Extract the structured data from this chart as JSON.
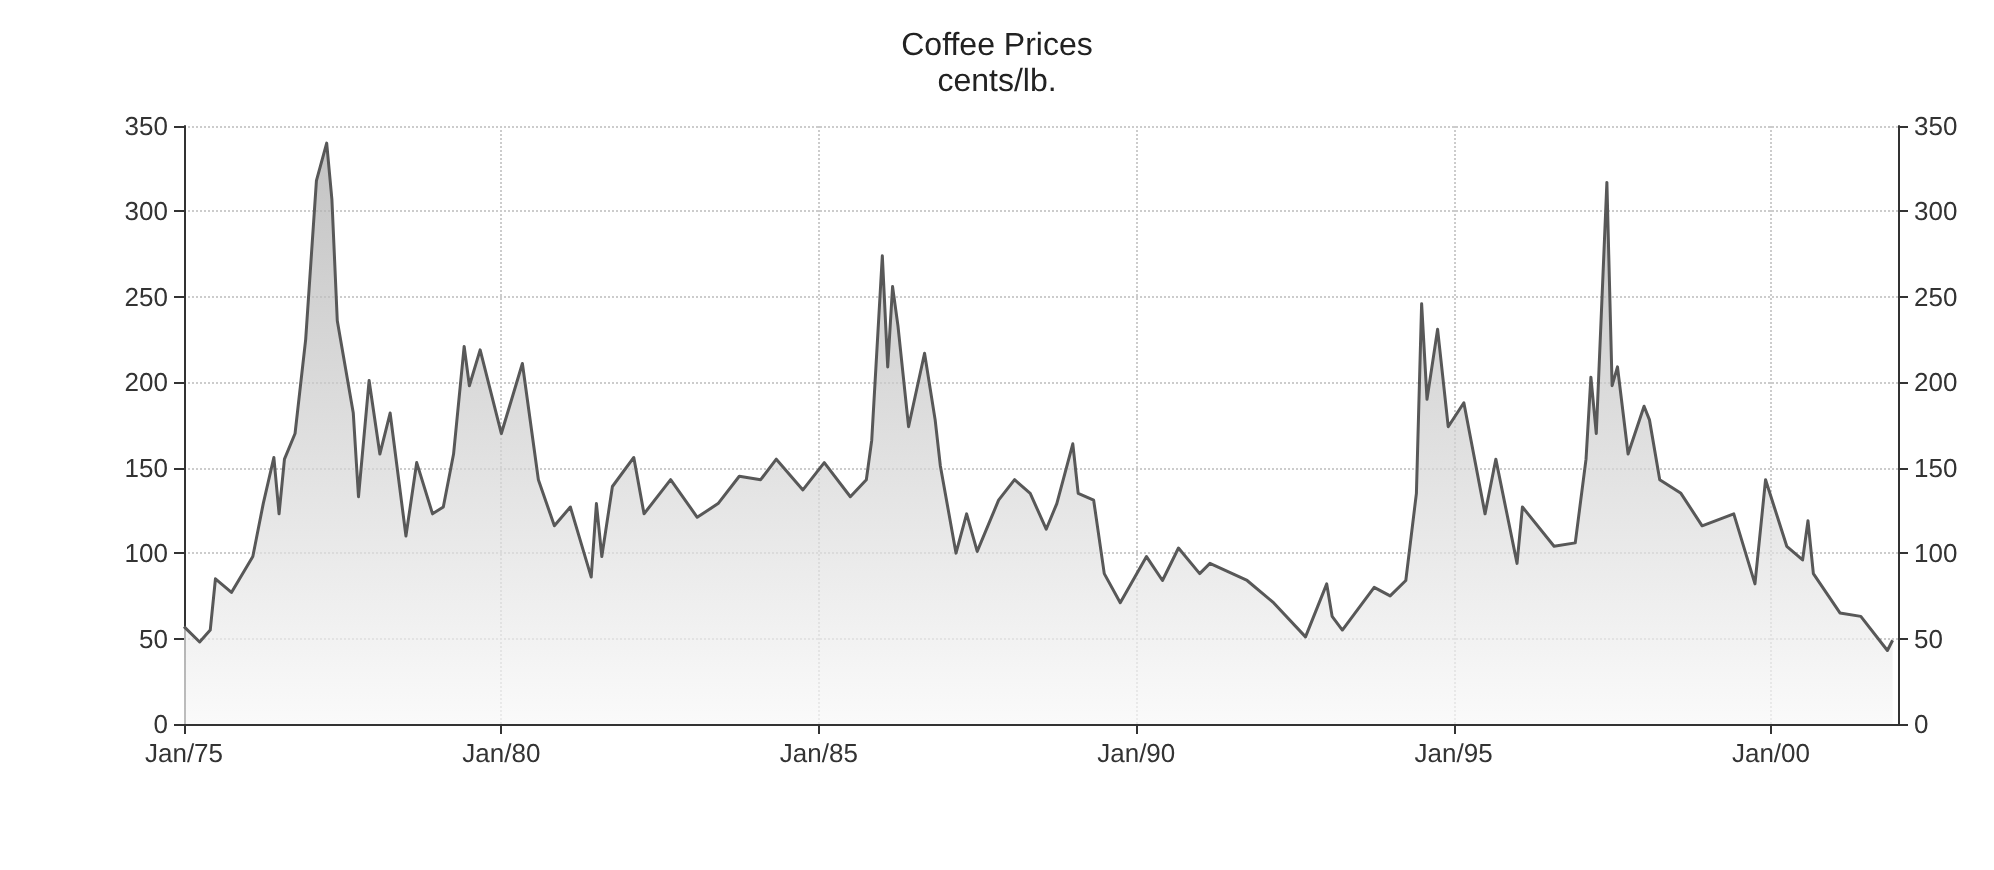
{
  "chart_data": {
    "type": "area",
    "title": "Coffee Prices",
    "subtitle": "cents/lb.",
    "color": "#585858",
    "grid": true,
    "marker": "none",
    "line_style": "solid",
    "x": [
      "1975-01",
      "1975-04",
      "1975-06",
      "1975-07",
      "1975-10",
      "1976-02",
      "1976-04",
      "1976-06",
      "1976-07",
      "1976-08",
      "1976-10",
      "1976-12",
      "1977-02",
      "1977-04",
      "1977-05",
      "1977-06",
      "1977-09",
      "1977-10",
      "1977-12",
      "1978-02",
      "1978-04",
      "1978-07",
      "1978-09",
      "1978-12",
      "1979-02",
      "1979-04",
      "1979-06",
      "1979-07",
      "1979-09",
      "1980-01",
      "1980-05",
      "1980-08",
      "1980-11",
      "1981-02",
      "1981-06",
      "1981-07",
      "1981-08",
      "1981-10",
      "1982-02",
      "1982-04",
      "1982-09",
      "1983-02",
      "1983-06",
      "1983-10",
      "1984-02",
      "1984-05",
      "1984-10",
      "1985-02",
      "1985-07",
      "1985-10",
      "1985-11",
      "1986-01",
      "1986-02",
      "1986-03",
      "1986-04",
      "1986-06",
      "1986-09",
      "1986-11",
      "1986-12",
      "1987-03",
      "1987-05",
      "1987-07",
      "1987-11",
      "1988-02",
      "1988-05",
      "1988-08",
      "1988-10",
      "1989-01",
      "1989-02",
      "1989-05",
      "1989-07",
      "1989-10",
      "1990-03",
      "1990-06",
      "1990-09",
      "1991-01",
      "1991-03",
      "1991-10",
      "1992-03",
      "1992-09",
      "1993-01",
      "1993-02",
      "1993-04",
      "1993-10",
      "1994-01",
      "1994-04",
      "1994-06",
      "1994-07",
      "1994-08",
      "1994-10",
      "1994-12",
      "1995-03",
      "1995-07",
      "1995-09",
      "1996-01",
      "1996-02",
      "1996-08",
      "1996-12",
      "1997-02",
      "1997-03",
      "1997-04",
      "1997-06",
      "1997-07",
      "1997-08",
      "1997-10",
      "1998-01",
      "1998-02",
      "1998-04",
      "1998-08",
      "1998-12",
      "1999-06",
      "1999-10",
      "1999-12",
      "2000-04",
      "2000-07",
      "2000-08",
      "2000-09",
      "2001-02",
      "2001-06",
      "2001-11",
      "2001-12"
    ],
    "values": [
      57,
      48,
      55,
      85,
      77,
      98,
      129,
      156,
      123,
      155,
      170,
      225,
      318,
      340,
      307,
      236,
      182,
      133,
      201,
      158,
      182,
      110,
      153,
      123,
      127,
      158,
      221,
      198,
      219,
      170,
      211,
      143,
      116,
      127,
      86,
      129,
      98,
      139,
      156,
      123,
      143,
      121,
      129,
      145,
      143,
      155,
      137,
      153,
      133,
      143,
      166,
      274,
      209,
      256,
      233,
      174,
      217,
      178,
      151,
      100,
      123,
      101,
      131,
      143,
      135,
      114,
      129,
      164,
      135,
      131,
      88,
      71,
      98,
      84,
      103,
      88,
      94,
      84,
      71,
      51,
      82,
      63,
      55,
      80,
      75,
      84,
      135,
      246,
      190,
      231,
      174,
      188,
      123,
      155,
      94,
      127,
      104,
      106,
      155,
      203,
      170,
      317,
      198,
      209,
      158,
      186,
      178,
      143,
      135,
      116,
      123,
      82,
      143,
      104,
      96,
      119,
      88,
      65,
      63,
      43,
      49
    ],
    "xlim": [
      "1975-01",
      "2002-01"
    ],
    "xticks": [
      {
        "value": "1975-01",
        "label": "Jan/75"
      },
      {
        "value": "1980-01",
        "label": "Jan/80"
      },
      {
        "value": "1985-01",
        "label": "Jan/85"
      },
      {
        "value": "1990-01",
        "label": "Jan/90"
      },
      {
        "value": "1995-01",
        "label": "Jan/95"
      },
      {
        "value": "2000-01",
        "label": "Jan/00"
      }
    ],
    "ylim": [
      0,
      350
    ],
    "yticks": [
      0,
      50,
      100,
      150,
      200,
      250,
      300,
      350
    ],
    "y2lim": [
      0,
      350
    ],
    "y2ticks": [
      0,
      50,
      100,
      150,
      200,
      250,
      300,
      350
    ]
  }
}
